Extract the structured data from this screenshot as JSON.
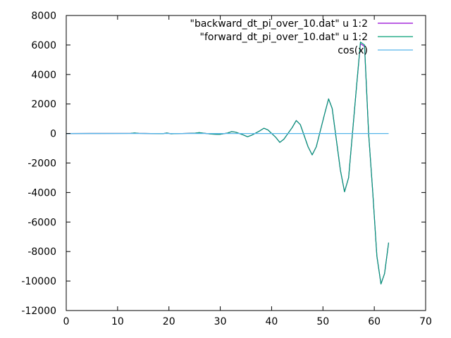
{
  "chart_data": {
    "type": "line",
    "xlabel": "",
    "ylabel": "",
    "xlim": [
      0,
      70
    ],
    "ylim": [
      -12000,
      8000
    ],
    "xticks": [
      0,
      10,
      20,
      30,
      40,
      50,
      60,
      70
    ],
    "yticks": [
      -12000,
      -10000,
      -8000,
      -6000,
      -4000,
      -2000,
      0,
      2000,
      4000,
      6000,
      8000
    ],
    "xtick_labels": [
      "0",
      "10",
      "20",
      "30",
      "40",
      "50",
      "60",
      "70"
    ],
    "ytick_labels": [
      "-12000",
      "-10000",
      "-8000",
      "-6000",
      "-4000",
      "-2000",
      "0",
      "2000",
      "4000",
      "6000",
      "8000"
    ],
    "grid": false,
    "legend_position": "top-right",
    "series": [
      {
        "name": "\"backward_dt_pi_over_10.dat\" u 1:2",
        "color": "#9400d3",
        "x": [
          0,
          6.3,
          12.6,
          13.3,
          14.1,
          18.8,
          19.6,
          20.4,
          25.1,
          25.9,
          26.7,
          28.3,
          29.8,
          31.4,
          32.2,
          33.0,
          34.5,
          35.3,
          36.1,
          37.7,
          38.5,
          39.3,
          40.8,
          41.6,
          42.4,
          44.0,
          44.8,
          45.6,
          47.1,
          47.9,
          48.7,
          50.3,
          51.1,
          51.8,
          53.4,
          54.2,
          55.0,
          56.5,
          57.3,
          58.1,
          58.9,
          59.7,
          60.5,
          61.3,
          62.0,
          62.8
        ],
        "y": [
          0,
          5,
          10,
          40,
          10,
          -15,
          40,
          -20,
          25,
          60,
          25,
          -40,
          -60,
          30,
          130,
          90,
          -100,
          -220,
          -120,
          180,
          360,
          240,
          -260,
          -600,
          -380,
          400,
          880,
          600,
          -900,
          -1450,
          -900,
          1300,
          2350,
          1700,
          -2500,
          -3950,
          -3000,
          3000,
          6100,
          5900,
          0,
          -4000,
          -8300,
          -10200,
          -9500,
          -7400
        ]
      },
      {
        "name": "\"forward_dt_pi_over_10.dat\" u 1:2",
        "color": "#009e73",
        "x": [
          0,
          6.3,
          12.6,
          13.3,
          14.1,
          18.8,
          19.6,
          20.4,
          25.1,
          25.9,
          26.7,
          28.3,
          29.8,
          31.4,
          32.2,
          33.0,
          34.5,
          35.3,
          36.1,
          37.7,
          38.5,
          39.3,
          40.8,
          41.6,
          42.4,
          44.0,
          44.8,
          45.6,
          47.1,
          47.9,
          48.7,
          50.3,
          51.1,
          51.8,
          53.4,
          54.2,
          55.0,
          56.5,
          57.3,
          58.1,
          58.9,
          59.7,
          60.5,
          61.3,
          62.0,
          62.8
        ],
        "y": [
          0,
          5,
          10,
          40,
          10,
          -15,
          40,
          -20,
          25,
          60,
          25,
          -40,
          -60,
          30,
          130,
          90,
          -100,
          -220,
          -120,
          180,
          360,
          240,
          -260,
          -600,
          -380,
          400,
          880,
          600,
          -900,
          -1450,
          -900,
          1300,
          2350,
          1700,
          -2500,
          -3950,
          -3000,
          3000,
          6200,
          6000,
          0,
          -4000,
          -8300,
          -10200,
          -9500,
          -7400
        ]
      },
      {
        "name": "cos(x)",
        "color": "#56b4e9",
        "x": [
          0,
          62.8
        ],
        "y": [
          0,
          0
        ]
      }
    ]
  }
}
